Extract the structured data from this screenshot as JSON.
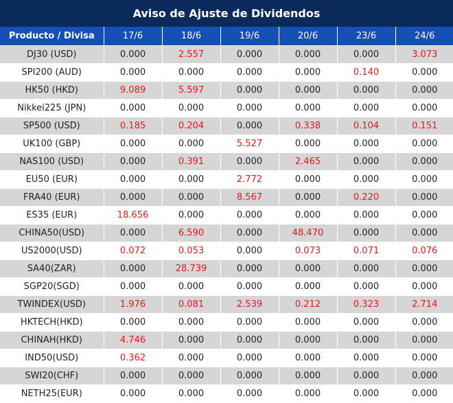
{
  "title": "Aviso de Ajuste de Dividendos",
  "header": {
    "product_label": "Producto / Divisa",
    "dates": [
      "17/6",
      "18/6",
      "19/6",
      "20/6",
      "23/6",
      "24/6"
    ]
  },
  "colors": {
    "title_bg": "#0b2a5c",
    "header_bg": "#1550b4",
    "row_alt_bg": "#d6d6d6",
    "highlight_text": "#e8171b"
  },
  "rows": [
    {
      "product": "DJ30 (USD)",
      "values": [
        "0.000",
        "2.557",
        "0.000",
        "0.000",
        "0.000",
        "3.073"
      ]
    },
    {
      "product": "SPI200 (AUD)",
      "values": [
        "0.000",
        "0.000",
        "0.000",
        "0.000",
        "0.140",
        "0.000"
      ]
    },
    {
      "product": "HK50 (HKD)",
      "values": [
        "9.089",
        "5.597",
        "0.000",
        "0.000",
        "0.000",
        "0.000"
      ]
    },
    {
      "product": "Nikkei225 (JPN)",
      "values": [
        "0.000",
        "0.000",
        "0.000",
        "0.000",
        "0.000",
        "0.000"
      ]
    },
    {
      "product": "SP500 (USD)",
      "values": [
        "0.185",
        "0.204",
        "0.000",
        "0.338",
        "0.104",
        "0.151"
      ]
    },
    {
      "product": "UK100 (GBP)",
      "values": [
        "0.000",
        "0.000",
        "5.527",
        "0.000",
        "0.000",
        "0.000"
      ]
    },
    {
      "product": "NAS100 (USD)",
      "values": [
        "0.000",
        "0.391",
        "0.000",
        "2.465",
        "0.000",
        "0.000"
      ]
    },
    {
      "product": "EU50 (EUR)",
      "values": [
        "0.000",
        "0.000",
        "2.772",
        "0.000",
        "0.000",
        "0.000"
      ]
    },
    {
      "product": "FRA40 (EUR)",
      "values": [
        "0.000",
        "0.000",
        "8.567",
        "0.000",
        "0.220",
        "0.000"
      ]
    },
    {
      "product": "ES35 (EUR)",
      "values": [
        "18.656",
        "0.000",
        "0.000",
        "0.000",
        "0.000",
        "0.000"
      ]
    },
    {
      "product": "CHINA50(USD)",
      "values": [
        "0.000",
        "6.590",
        "0.000",
        "48.470",
        "0.000",
        "0.000"
      ]
    },
    {
      "product": "US2000(USD)",
      "values": [
        "0.072",
        "0.053",
        "0.000",
        "0.073",
        "0.071",
        "0.076"
      ]
    },
    {
      "product": "SA40(ZAR)",
      "values": [
        "0.000",
        "28.739",
        "0.000",
        "0.000",
        "0.000",
        "0.000"
      ]
    },
    {
      "product": "SGP20(SGD)",
      "values": [
        "0.000",
        "0.000",
        "0.000",
        "0.000",
        "0.000",
        "0.000"
      ]
    },
    {
      "product": "TWINDEX(USD)",
      "values": [
        "1.976",
        "0.081",
        "2.539",
        "0.212",
        "0.323",
        "2.714"
      ]
    },
    {
      "product": "HKTECH(HKD)",
      "values": [
        "0.000",
        "0.000",
        "0.000",
        "0.000",
        "0.000",
        "0.000"
      ]
    },
    {
      "product": "CHINAH(HKD)",
      "values": [
        "4.746",
        "0.000",
        "0.000",
        "0.000",
        "0.000",
        "0.000"
      ]
    },
    {
      "product": "IND50(USD)",
      "values": [
        "0.362",
        "0.000",
        "0.000",
        "0.000",
        "0.000",
        "0.000"
      ]
    },
    {
      "product": "SWI20(CHF)",
      "values": [
        "0.000",
        "0.000",
        "0.000",
        "0.000",
        "0.000",
        "0.000"
      ]
    },
    {
      "product": "NETH25(EUR)",
      "values": [
        "0.000",
        "0.000",
        "0.000",
        "0.000",
        "0.000",
        "0.000"
      ]
    }
  ]
}
